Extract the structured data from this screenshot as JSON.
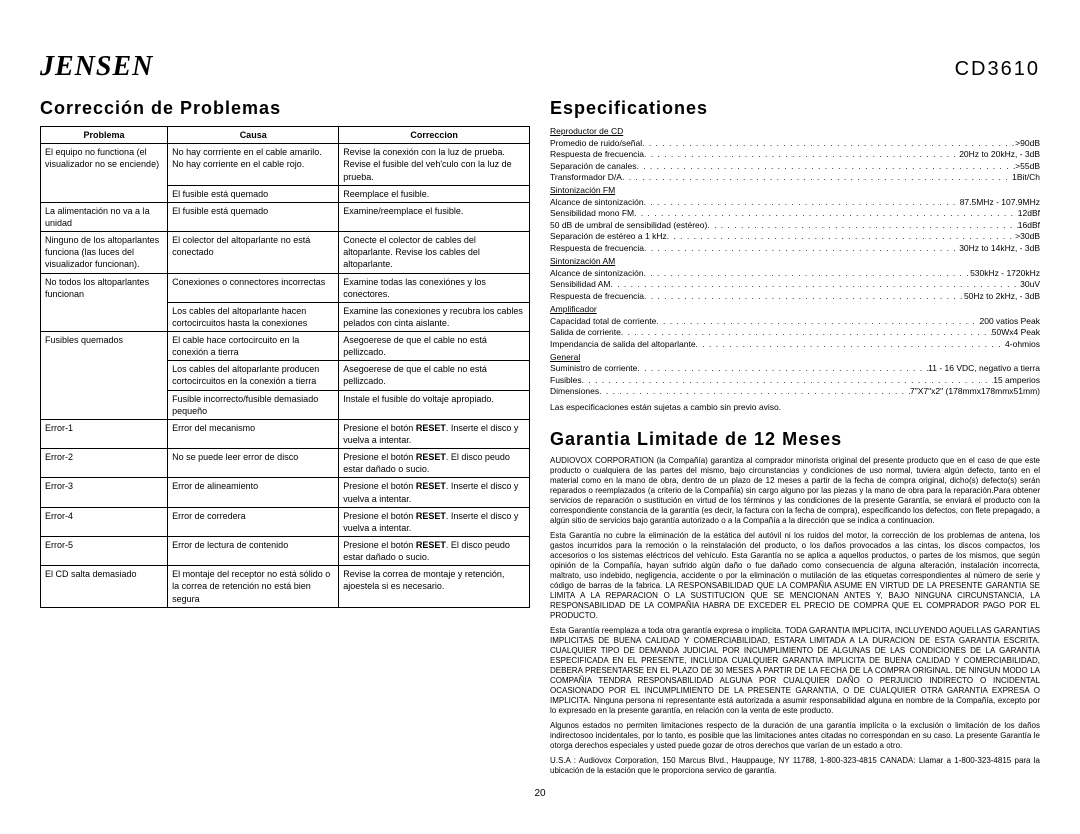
{
  "header": {
    "logo": "JENSEN",
    "model": "CD3610"
  },
  "left": {
    "title": "Corrección de Problemas",
    "table": {
      "headers": [
        "Problema",
        "Causa",
        "Correccion"
      ],
      "rows": [
        [
          "El equipo no functiona (el visualizador no se enciende)",
          "No hay corrriente en el cable amarilo. No hay corriente en el cable rojo.",
          "Revise la conexión con la luz de prueba. Revise el fusible del veh'culo con la luz de prueba."
        ],
        [
          "",
          "El fusible está quemado",
          "Reemplace el fusible."
        ],
        [
          "La alimentación no va a la unidad",
          "El fusible está quemado",
          "Examine/reemplace el fusible."
        ],
        [
          "Ninguno de los altoparlantes funciona (las luces del visualizador funcionan).",
          "El colector del altoparlante no está conectado",
          "Conecte el colector de cables del altoparlante. Revise los cables del altoparlante."
        ],
        [
          "No todos los altoparlantes funcionan",
          "Conexiones o connectores incorrectas",
          "Examine todas las conexiónes y los conectores."
        ],
        [
          "",
          "Los cables del altoparlante hacen cortocircuitos hasta la conexiones",
          "Examine las conexiones y recubra los cables pelados con cinta aislante."
        ],
        [
          "Fusibles quemados",
          "El cable hace cortocircuito en la conexión a tierra",
          "Asegoerese de que el cable no está pellizcado."
        ],
        [
          "",
          "Los cables del altoparlante producen cortocircuitos en la conexión a tierra",
          "Asegoerese de que el cable no está pellizcado."
        ],
        [
          "",
          "Fusible incorrecto/fusible demasiado pequeño",
          "Instale el fusible do voltaje apropiado."
        ],
        [
          "Error-1",
          "Error del mecanismo",
          "Presione el botón RESET. Inserte el disco y vuelva a intentar."
        ],
        [
          "Error-2",
          "No se puede leer error de disco",
          "Presione el botón RESET. El disco peudo estar dañado o sucio."
        ],
        [
          "Error-3",
          "Error de alineamiento",
          "Presione el botón RESET. Inserte el disco y vuelva a intentar."
        ],
        [
          "Error-4",
          "Error de corredera",
          "Presione el botón RESET. Inserte el disco y vuelva a intentar."
        ],
        [
          "Error-5",
          "Error de lectura de contenido",
          "Presione el botón RESET. El disco peudo estar dañado o sucio."
        ],
        [
          "El CD salta demasiado",
          "El montaje del receptor no está sólido o la correa de retención no está bien segura",
          "Revise la correa de montaje y retención, ajoestela si es necesario."
        ]
      ],
      "col_widths": [
        "26%",
        "35%",
        "39%"
      ]
    }
  },
  "right": {
    "specs_title": "Especificationes",
    "spec_groups": [
      {
        "title": "Reproductor de CD",
        "items": [
          {
            "label": "Promedio de ruido/señal",
            "value": ">90dB"
          },
          {
            "label": "Respuesta de frecuencia",
            "value": "20Hz to 20kHz, - 3dB"
          },
          {
            "label": "Separación de canales",
            "value": ">55dB"
          },
          {
            "label": "Transformador D/A",
            "value": "1Bit/Ch"
          }
        ]
      },
      {
        "title": "Sintonización FM",
        "items": [
          {
            "label": "Alcance de sintonización",
            "value": "87.5MHz - 107.9MHz"
          },
          {
            "label": "Sensibilidad mono FM",
            "value": "12dBf"
          },
          {
            "label": "50 dB de umbral de sensibilidad (estéreo)",
            "value": "16dBf"
          },
          {
            "label": "Separación de estéreo a 1 kHz",
            "value": ">30dB"
          },
          {
            "label": "Respuesta de frecuencia",
            "value": "30Hz to 14kHz, - 3dB"
          }
        ]
      },
      {
        "title": "Sintonización AM",
        "items": [
          {
            "label": "Alcance de sintonización",
            "value": "530kHz - 1720kHz"
          },
          {
            "label": "Sensibilidad AM",
            "value": "30uV"
          },
          {
            "label": "Respuesta de frecuencia",
            "value": "50Hz to 2kHz, - 3dB"
          }
        ]
      },
      {
        "title": "Amplificador",
        "items": [
          {
            "label": "Capacidad total de corriente",
            "value": "200 vatios Peak"
          },
          {
            "label": "Salida de corriente",
            "value": "50Wx4 Peak"
          },
          {
            "label": "Impendancia de salida del altoparlante",
            "value": "4-ohmios"
          }
        ]
      },
      {
        "title": "General",
        "items": [
          {
            "label": "Suministro de corriente",
            "value": "11 - 16 VDC, negativo a tierra"
          },
          {
            "label": "Fusibles",
            "value": "15 amperios"
          },
          {
            "label": "Dimensiones",
            "value": "7\"X7\"x2\" (178mmx178mmx51mm)"
          }
        ]
      }
    ],
    "spec_note": "Las especificaciones están sujetas a cambio sin previo aviso.",
    "warranty_title": "Garantia Limitade de 12 Meses",
    "warranty_paragraphs": [
      "AUDIOVOX CORPORATION (la Compañía) garantiza al comprador minorista original del presente producto que en el caso de que este producto o cualquiera de las partes del mismo, bajo circunstancias y condiciones de uso normal, tuviera algún defecto, tanto en el material como en la mano de obra, dentro de un plazo de 12 meses a partir de la fecha de compra original, dicho(s) defecto(s) serán reparados o reemplazados (a criterio de la Compañía) sin cargo alguno por las piezas y la mano de obra para la reparación.Para obtener servicios de reparación o sustitución en virtud de los términos y las condiciones de la presente Garantía, se enviará el producto con la correspondiente constancia de la garantía (es decir, la factura con la fecha de compra), especificando los defectos, con flete prepagado, a algún sitio de servicios bajo garantía autorizado o a la Compañía a la dirección que se indica a continuacion.",
      "Esta Garantía no cubre la eliminación de la estática del autóvil ni los ruidos del motor, la corrección de los problemas de antena, los gastos incurridos para la remoción o la reinstalación del producto, o los daños provocados a las cintas, los discos compactos, los accesorios o los sistemas eléctricos del vehículo. Esta Garantía no se aplica a aquellos productos, o partes de los mismos, que según opinión de la Compañía, hayan sufrido algún daño o fue dañado como consecuencia de alguna alteración, instalación incorrecta, maltrato, uso indebido, negligencia, accidente o por la eliminación o mutilación de las etiquetas correspondientes al número de serie y código de barras de la fabrica. LA RESPONSABILIDAD QUE LA COMPAÑIA ASUME EN VIRTUD DE LA PRESENTE GARANTIA SE LIMITA A LA REPARACION O LA SUSTITUCION QUE SE MENCIONAN ANTES Y, BAJO NINGUNA CIRCUNSTANCIA, LA RESPONSABILIDAD DE LA COMPAÑIA HABRA DE EXCEDER EL PRECIO DE COMPRA QUE EL COMPRADOR PAGO POR EL PRODUCTO.",
      "Esta Garantía reemplaza a toda otra garantía expresa o implícita. TODA GARANTIA IMPLICITA, INCLUYENDO AQUELLAS GARANTIAS IMPLICITAS DE BUENA CALIDAD Y COMERCIABILIDAD, ESTARA LIMITADA A LA DURACION DE ESTA GARANTIA ESCRITA. CUALQUIER TIPO DE DEMANDA JUDICIAL POR INCUMPLIMIENTO DE ALGUNAS DE LAS CONDICIONES DE LA GARANTIA ESPECIFICADA EN EL PRESENTE, INCLUIDA CUALQUIER GARANTIA IMPLICITA DE BUENA CALIDAD Y COMERCIABILIDAD, DEBERA PRESENTARSE EN EL PLAZO DE 30 MESES A PARTIR DE LA FECHA DE LA COMPRA ORIGINAL. DE NINGUN MODO LA COMPAÑIA TENDRA RESPONSABILIDAD ALGUNA POR CUALQUIER DAÑO O PERJUICIO INDIRECTO O INCIDENTAL OCASIONADO POR EL INCUMPLIMIENTO DE LA PRESENTE GARANTIA, O DE CUALQUIER OTRA GARANTIA EXPRESA O IMPLICITA. Ninguna persona ni representante está autorizada a asumir responsabilidad alguna en nombre de la Compañía, excepto por lo expresado en la presente garantía, en relación con la venta de este producto.",
      "Algunos estados no permiten limitaciones respecto de la duración de una garantía implícita o la exclusión o limitación de los daños indirectosoo incidentales, por lo tanto, es posible que las limitaciones antes citadas no correspondan en su caso. La presente Garantía le otorga derechos especiales y usted puede gozar de otros derechos que varían de un estado a otro.",
      "U.S.A : Audiovox Corporation, 150 Marcus Blvd., Hauppauge, NY 11788, 1-800-323-4815\nCANADA: Llamar a 1-800-323-4815 para la ubicación de la estación que le proporciona servico de garantía."
    ]
  },
  "page_number": "20",
  "colors": {
    "text": "#000000",
    "bg": "#ffffff",
    "border": "#000000"
  }
}
